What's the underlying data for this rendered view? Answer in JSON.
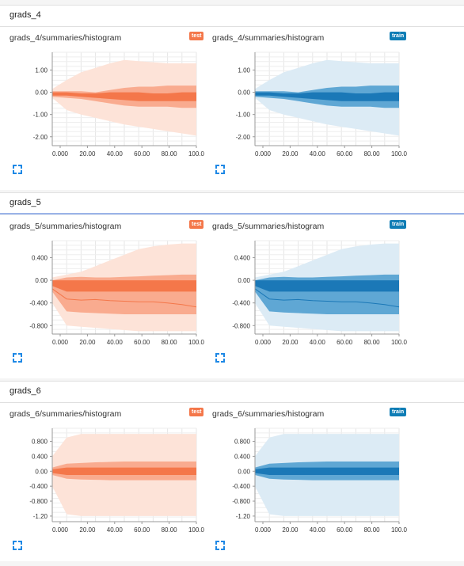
{
  "sections": [
    {
      "title": "grads_4",
      "active": false,
      "charts": [
        {
          "title": "grads_4/summaries/histogram",
          "run": "test",
          "colors": {
            "band": "#fde3d8",
            "mid": "#f9ab8f",
            "dark": "#f4774a"
          },
          "yticks": [
            "1.00",
            "0.00",
            "-1.00",
            "-2.00"
          ],
          "ytickvals": [
            1,
            0,
            -1,
            -2
          ],
          "ymin": -2.4,
          "ymax": 1.8,
          "xticks": [
            "0.000",
            "20.00",
            "40.00",
            "60.00",
            "80.00",
            "100.0"
          ],
          "chart_data": {
            "type": "area",
            "x": [
              0,
              10,
              20,
              30,
              40,
              50,
              60,
              70,
              80,
              90,
              100
            ],
            "outer_low": [
              -0.25,
              -0.8,
              -1.0,
              -1.15,
              -1.3,
              -1.45,
              -1.55,
              -1.65,
              -1.75,
              -1.85,
              -1.95
            ],
            "outer_high": [
              0.15,
              0.55,
              0.9,
              1.1,
              1.3,
              1.45,
              1.4,
              1.35,
              1.3,
              1.3,
              1.3
            ],
            "mid_low": [
              -0.2,
              -0.25,
              -0.3,
              -0.4,
              -0.5,
              -0.6,
              -0.65,
              -0.65,
              -0.65,
              -0.7,
              -0.7
            ],
            "mid_high": [
              0.05,
              0.05,
              0.05,
              0.0,
              0.1,
              0.2,
              0.25,
              0.25,
              0.3,
              0.3,
              0.3
            ],
            "inner_low": [
              -0.15,
              -0.15,
              -0.2,
              -0.25,
              -0.3,
              -0.35,
              -0.4,
              -0.4,
              -0.4,
              -0.4,
              -0.4
            ],
            "inner_high": [
              0.0,
              0.0,
              -0.05,
              -0.05,
              0.0,
              0.0,
              0.0,
              -0.05,
              -0.05,
              0.0,
              0.0
            ],
            "median": [
              -0.1,
              -0.1,
              -0.1,
              -0.15,
              -0.2,
              -0.2,
              -0.2,
              -0.2,
              -0.2,
              -0.2,
              -0.2
            ]
          }
        },
        {
          "title": "grads_4/summaries/histogram",
          "run": "train",
          "colors": {
            "band": "#dcebf5",
            "mid": "#5fa7d4",
            "dark": "#1b78b7"
          },
          "yticks": [
            "1.00",
            "0.00",
            "-1.00",
            "-2.00"
          ],
          "ytickvals": [
            1,
            0,
            -1,
            -2
          ],
          "ymin": -2.4,
          "ymax": 1.8,
          "xticks": [
            "0.000",
            "20.00",
            "40.00",
            "60.00",
            "80.00",
            "100.0"
          ],
          "chart_data": {
            "type": "area",
            "x": [
              0,
              10,
              20,
              30,
              40,
              50,
              60,
              70,
              80,
              90,
              100
            ],
            "outer_low": [
              -0.25,
              -0.8,
              -1.0,
              -1.15,
              -1.3,
              -1.45,
              -1.55,
              -1.65,
              -1.75,
              -1.85,
              -1.95
            ],
            "outer_high": [
              0.15,
              0.55,
              0.9,
              1.1,
              1.3,
              1.45,
              1.4,
              1.35,
              1.3,
              1.3,
              1.3
            ],
            "mid_low": [
              -0.2,
              -0.25,
              -0.3,
              -0.4,
              -0.5,
              -0.6,
              -0.65,
              -0.65,
              -0.65,
              -0.7,
              -0.7
            ],
            "mid_high": [
              0.05,
              0.05,
              0.05,
              0.0,
              0.1,
              0.2,
              0.25,
              0.25,
              0.3,
              0.3,
              0.3
            ],
            "inner_low": [
              -0.15,
              -0.15,
              -0.2,
              -0.25,
              -0.3,
              -0.35,
              -0.4,
              -0.4,
              -0.4,
              -0.4,
              -0.4
            ],
            "inner_high": [
              0.0,
              0.0,
              -0.05,
              -0.05,
              0.0,
              0.0,
              0.0,
              -0.05,
              -0.05,
              0.0,
              0.0
            ],
            "median": [
              -0.1,
              -0.1,
              -0.1,
              -0.15,
              -0.2,
              -0.2,
              -0.2,
              -0.2,
              -0.2,
              -0.2,
              -0.2
            ]
          }
        }
      ]
    },
    {
      "title": "grads_5",
      "active": true,
      "charts": [
        {
          "title": "grads_5/summaries/histogram",
          "run": "test",
          "colors": {
            "band": "#fde3d8",
            "mid": "#f9ab8f",
            "dark": "#f4774a"
          },
          "yticks": [
            "0.400",
            "0.00",
            "-0.400",
            "-0.800"
          ],
          "ytickvals": [
            0.4,
            0,
            -0.4,
            -0.8
          ],
          "ymin": -0.95,
          "ymax": 0.7,
          "xticks": [
            "0.000",
            "20.00",
            "40.00",
            "60.00",
            "80.00",
            "100.0"
          ],
          "chart_data": {
            "type": "area",
            "x": [
              0,
              10,
              20,
              30,
              40,
              50,
              60,
              70,
              80,
              90,
              100
            ],
            "outer_low": [
              -0.4,
              -0.8,
              -0.82,
              -0.84,
              -0.86,
              -0.88,
              -0.9,
              -0.9,
              -0.9,
              -0.9,
              -0.9
            ],
            "outer_high": [
              0.05,
              0.1,
              0.15,
              0.25,
              0.35,
              0.45,
              0.55,
              0.6,
              0.63,
              0.65,
              0.65
            ],
            "mid_low": [
              -0.2,
              -0.55,
              -0.57,
              -0.58,
              -0.59,
              -0.6,
              -0.6,
              -0.6,
              -0.6,
              -0.6,
              -0.6
            ],
            "mid_high": [
              0.0,
              0.05,
              0.06,
              0.05,
              0.05,
              0.06,
              0.07,
              0.08,
              0.09,
              0.1,
              0.1
            ],
            "inner_low": [
              -0.1,
              -0.2,
              -0.2,
              -0.2,
              -0.2,
              -0.2,
              -0.2,
              -0.2,
              -0.2,
              -0.2,
              -0.2
            ],
            "inner_high": [
              0.0,
              0.0,
              0.0,
              0.0,
              0.0,
              0.0,
              0.0,
              0.0,
              0.0,
              0.0,
              0.0
            ],
            "median": [
              -0.15,
              -0.33,
              -0.35,
              -0.34,
              -0.36,
              -0.37,
              -0.38,
              -0.38,
              -0.4,
              -0.43,
              -0.47
            ]
          }
        },
        {
          "title": "grads_5/summaries/histogram",
          "run": "train",
          "colors": {
            "band": "#dcebf5",
            "mid": "#5fa7d4",
            "dark": "#1b78b7"
          },
          "yticks": [
            "0.400",
            "0.00",
            "-0.400",
            "-0.800"
          ],
          "ytickvals": [
            0.4,
            0,
            -0.4,
            -0.8
          ],
          "ymin": -0.95,
          "ymax": 0.7,
          "xticks": [
            "0.000",
            "20.00",
            "40.00",
            "60.00",
            "80.00",
            "100.0"
          ],
          "chart_data": {
            "type": "area",
            "x": [
              0,
              10,
              20,
              30,
              40,
              50,
              60,
              70,
              80,
              90,
              100
            ],
            "outer_low": [
              -0.4,
              -0.8,
              -0.82,
              -0.84,
              -0.86,
              -0.88,
              -0.9,
              -0.9,
              -0.9,
              -0.9,
              -0.9
            ],
            "outer_high": [
              0.05,
              0.1,
              0.15,
              0.25,
              0.35,
              0.45,
              0.55,
              0.6,
              0.63,
              0.65,
              0.65
            ],
            "mid_low": [
              -0.2,
              -0.55,
              -0.57,
              -0.58,
              -0.59,
              -0.6,
              -0.6,
              -0.6,
              -0.6,
              -0.6,
              -0.6
            ],
            "mid_high": [
              0.0,
              0.05,
              0.06,
              0.05,
              0.05,
              0.06,
              0.07,
              0.08,
              0.09,
              0.1,
              0.1
            ],
            "inner_low": [
              -0.1,
              -0.2,
              -0.2,
              -0.2,
              -0.2,
              -0.2,
              -0.2,
              -0.2,
              -0.2,
              -0.2,
              -0.2
            ],
            "inner_high": [
              0.0,
              0.0,
              0.0,
              0.0,
              0.0,
              0.0,
              0.0,
              0.0,
              0.0,
              0.0,
              0.0
            ],
            "median": [
              -0.15,
              -0.33,
              -0.35,
              -0.34,
              -0.36,
              -0.37,
              -0.38,
              -0.38,
              -0.4,
              -0.43,
              -0.47
            ]
          }
        }
      ]
    },
    {
      "title": "grads_6",
      "active": false,
      "charts": [
        {
          "title": "grads_6/summaries/histogram",
          "run": "test",
          "colors": {
            "band": "#fde3d8",
            "mid": "#f9ab8f",
            "dark": "#f4774a"
          },
          "yticks": [
            "0.800",
            "0.400",
            "0.00",
            "-0.400",
            "-0.800",
            "-1.20"
          ],
          "ytickvals": [
            0.8,
            0.4,
            0,
            -0.4,
            -0.8,
            -1.2
          ],
          "ymin": -1.35,
          "ymax": 1.15,
          "xticks": [
            "0.000",
            "20.00",
            "40.00",
            "60.00",
            "80.00",
            "100.0"
          ],
          "chart_data": {
            "type": "area",
            "x": [
              0,
              10,
              20,
              30,
              40,
              50,
              60,
              70,
              80,
              90,
              100
            ],
            "outer_low": [
              -0.4,
              -1.15,
              -1.2,
              -1.2,
              -1.2,
              -1.2,
              -1.2,
              -1.2,
              -1.2,
              -1.2,
              -1.2
            ],
            "outer_high": [
              0.4,
              0.9,
              1.0,
              1.0,
              1.0,
              1.0,
              1.0,
              1.0,
              1.0,
              1.0,
              1.0
            ],
            "mid_low": [
              -0.1,
              -0.2,
              -0.22,
              -0.23,
              -0.24,
              -0.24,
              -0.24,
              -0.24,
              -0.24,
              -0.24,
              -0.24
            ],
            "mid_high": [
              0.1,
              0.2,
              0.22,
              0.24,
              0.25,
              0.26,
              0.26,
              0.26,
              0.26,
              0.26,
              0.26
            ],
            "inner_low": [
              -0.05,
              -0.1,
              -0.1,
              -0.1,
              -0.1,
              -0.1,
              -0.1,
              -0.1,
              -0.1,
              -0.1,
              -0.1
            ],
            "inner_high": [
              0.05,
              0.1,
              0.1,
              0.1,
              0.1,
              0.1,
              0.1,
              0.1,
              0.1,
              0.1,
              0.1
            ],
            "median": [
              0.0,
              -0.02,
              0.0,
              -0.01,
              0.0,
              0.0,
              0.0,
              -0.01,
              0.0,
              0.0,
              0.0
            ]
          }
        },
        {
          "title": "grads_6/summaries/histogram",
          "run": "train",
          "colors": {
            "band": "#dcebf5",
            "mid": "#5fa7d4",
            "dark": "#1b78b7"
          },
          "yticks": [
            "0.800",
            "0.400",
            "0.00",
            "-0.400",
            "-0.800",
            "-1.20"
          ],
          "ytickvals": [
            0.8,
            0.4,
            0,
            -0.4,
            -0.8,
            -1.2
          ],
          "ymin": -1.35,
          "ymax": 1.15,
          "xticks": [
            "0.000",
            "20.00",
            "40.00",
            "60.00",
            "80.00",
            "100.0"
          ],
          "chart_data": {
            "type": "area",
            "x": [
              0,
              10,
              20,
              30,
              40,
              50,
              60,
              70,
              80,
              90,
              100
            ],
            "outer_low": [
              -0.4,
              -1.15,
              -1.2,
              -1.2,
              -1.2,
              -1.2,
              -1.2,
              -1.2,
              -1.2,
              -1.2,
              -1.2
            ],
            "outer_high": [
              0.4,
              0.9,
              1.0,
              1.0,
              1.0,
              1.0,
              1.0,
              1.0,
              1.0,
              1.0,
              1.0
            ],
            "mid_low": [
              -0.1,
              -0.2,
              -0.22,
              -0.23,
              -0.24,
              -0.24,
              -0.24,
              -0.24,
              -0.24,
              -0.24,
              -0.24
            ],
            "mid_high": [
              0.1,
              0.2,
              0.22,
              0.24,
              0.25,
              0.26,
              0.26,
              0.26,
              0.26,
              0.26,
              0.26
            ],
            "inner_low": [
              -0.05,
              -0.1,
              -0.1,
              -0.1,
              -0.1,
              -0.1,
              -0.1,
              -0.1,
              -0.1,
              -0.1,
              -0.1
            ],
            "inner_high": [
              0.05,
              0.1,
              0.1,
              0.1,
              0.1,
              0.1,
              0.1,
              0.1,
              0.1,
              0.1,
              0.1
            ],
            "median": [
              0.0,
              -0.02,
              0.0,
              -0.01,
              0.0,
              0.0,
              0.0,
              -0.01,
              0.0,
              0.0,
              0.0
            ]
          }
        }
      ]
    }
  ],
  "expand_icon": "expand-icon"
}
